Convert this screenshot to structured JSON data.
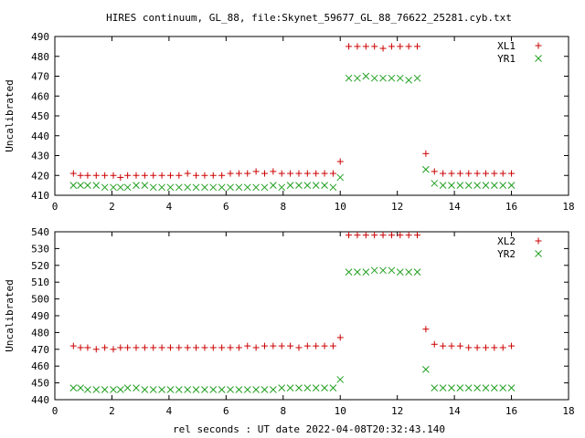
{
  "title": "HIRES continuum, GL_88, file:Skynet_59677_GL_88_76622_25281.cyb.txt",
  "xlabel": "rel seconds : UT date 2022-04-08T20:32:43.140",
  "colors": {
    "series1": "#cc0000",
    "series2": "#22a022"
  },
  "chart_data": [
    {
      "type": "scatter",
      "ylabel": "Uncalibrated",
      "xlim": [
        0,
        18
      ],
      "ylim": [
        410,
        490
      ],
      "xticks": [
        0,
        2,
        4,
        6,
        8,
        10,
        12,
        14,
        16,
        18
      ],
      "yticks": [
        410,
        420,
        430,
        440,
        450,
        460,
        470,
        480,
        490
      ],
      "grid": false,
      "legend": "top-right",
      "series": [
        {
          "name": "XL1",
          "marker": "plus",
          "x": [
            0.65,
            0.9,
            1.15,
            1.45,
            1.75,
            2.05,
            2.3,
            2.55,
            2.85,
            3.15,
            3.45,
            3.75,
            4.05,
            4.35,
            4.65,
            4.95,
            5.25,
            5.55,
            5.85,
            6.15,
            6.45,
            6.75,
            7.05,
            7.35,
            7.65,
            7.95,
            8.25,
            8.55,
            8.85,
            9.15,
            9.45,
            9.75,
            10.0,
            10.3,
            10.6,
            10.9,
            11.2,
            11.5,
            11.8,
            12.1,
            12.4,
            12.7,
            13.0,
            13.3,
            13.6,
            13.9,
            14.2,
            14.5,
            14.8,
            15.1,
            15.4,
            15.7,
            16.0
          ],
          "y": [
            421,
            420,
            420,
            420,
            420,
            420,
            419,
            420,
            420,
            420,
            420,
            420,
            420,
            420,
            421,
            420,
            420,
            420,
            420,
            421,
            421,
            421,
            422,
            421,
            422,
            421,
            421,
            421,
            421,
            421,
            421,
            421,
            427,
            485,
            485,
            485,
            485,
            484,
            485,
            485,
            485,
            485,
            431,
            422,
            421,
            421,
            421,
            421,
            421,
            421,
            421,
            421,
            421
          ]
        },
        {
          "name": "YR1",
          "marker": "cross",
          "x": [
            0.65,
            0.9,
            1.15,
            1.45,
            1.75,
            2.05,
            2.3,
            2.55,
            2.85,
            3.15,
            3.45,
            3.75,
            4.05,
            4.35,
            4.65,
            4.95,
            5.25,
            5.55,
            5.85,
            6.15,
            6.45,
            6.75,
            7.05,
            7.35,
            7.65,
            7.95,
            8.25,
            8.55,
            8.85,
            9.15,
            9.45,
            9.75,
            10.0,
            10.3,
            10.6,
            10.9,
            11.2,
            11.5,
            11.8,
            12.1,
            12.4,
            12.7,
            13.0,
            13.3,
            13.6,
            13.9,
            14.2,
            14.5,
            14.8,
            15.1,
            15.4,
            15.7,
            16.0
          ],
          "y": [
            415,
            415,
            415,
            415,
            414,
            414,
            414,
            414,
            415,
            415,
            414,
            414,
            414,
            414,
            414,
            414,
            414,
            414,
            414,
            414,
            414,
            414,
            414,
            414,
            415,
            414,
            415,
            415,
            415,
            415,
            415,
            414,
            419,
            469,
            469,
            470,
            469,
            469,
            469,
            469,
            468,
            469,
            423,
            416,
            415,
            415,
            415,
            415,
            415,
            415,
            415,
            415,
            415
          ]
        }
      ]
    },
    {
      "type": "scatter",
      "ylabel": "Uncalibrated",
      "xlim": [
        0,
        18
      ],
      "ylim": [
        440,
        540
      ],
      "xticks": [
        0,
        2,
        4,
        6,
        8,
        10,
        12,
        14,
        16,
        18
      ],
      "yticks": [
        440,
        450,
        460,
        470,
        480,
        490,
        500,
        510,
        520,
        530,
        540
      ],
      "grid": false,
      "legend": "top-right",
      "series": [
        {
          "name": "XL2",
          "marker": "plus",
          "x": [
            0.65,
            0.9,
            1.15,
            1.45,
            1.75,
            2.05,
            2.3,
            2.55,
            2.85,
            3.15,
            3.45,
            3.75,
            4.05,
            4.35,
            4.65,
            4.95,
            5.25,
            5.55,
            5.85,
            6.15,
            6.45,
            6.75,
            7.05,
            7.35,
            7.65,
            7.95,
            8.25,
            8.55,
            8.85,
            9.15,
            9.45,
            9.75,
            10.0,
            10.3,
            10.6,
            10.9,
            11.2,
            11.5,
            11.8,
            12.1,
            12.4,
            12.7,
            13.0,
            13.3,
            13.6,
            13.9,
            14.2,
            14.5,
            14.8,
            15.1,
            15.4,
            15.7,
            16.0
          ],
          "y": [
            472,
            471,
            471,
            470,
            471,
            470,
            471,
            471,
            471,
            471,
            471,
            471,
            471,
            471,
            471,
            471,
            471,
            471,
            471,
            471,
            471,
            472,
            471,
            472,
            472,
            472,
            472,
            471,
            472,
            472,
            472,
            472,
            477,
            538,
            538,
            538,
            538,
            538,
            538,
            538,
            538,
            538,
            482,
            473,
            472,
            472,
            472,
            471,
            471,
            471,
            471,
            471,
            472
          ]
        },
        {
          "name": "YR2",
          "marker": "cross",
          "x": [
            0.65,
            0.9,
            1.15,
            1.45,
            1.75,
            2.05,
            2.3,
            2.55,
            2.85,
            3.15,
            3.45,
            3.75,
            4.05,
            4.35,
            4.65,
            4.95,
            5.25,
            5.55,
            5.85,
            6.15,
            6.45,
            6.75,
            7.05,
            7.35,
            7.65,
            7.95,
            8.25,
            8.55,
            8.85,
            9.15,
            9.45,
            9.75,
            10.0,
            10.3,
            10.6,
            10.9,
            11.2,
            11.5,
            11.8,
            12.1,
            12.4,
            12.7,
            13.0,
            13.3,
            13.6,
            13.9,
            14.2,
            14.5,
            14.8,
            15.1,
            15.4,
            15.7,
            16.0
          ],
          "y": [
            447,
            447,
            446,
            446,
            446,
            446,
            446,
            447,
            447,
            446,
            446,
            446,
            446,
            446,
            446,
            446,
            446,
            446,
            446,
            446,
            446,
            446,
            446,
            446,
            446,
            447,
            447,
            447,
            447,
            447,
            447,
            447,
            452,
            516,
            516,
            516,
            517,
            517,
            517,
            516,
            516,
            516,
            458,
            447,
            447,
            447,
            447,
            447,
            447,
            447,
            447,
            447,
            447
          ]
        }
      ]
    }
  ]
}
